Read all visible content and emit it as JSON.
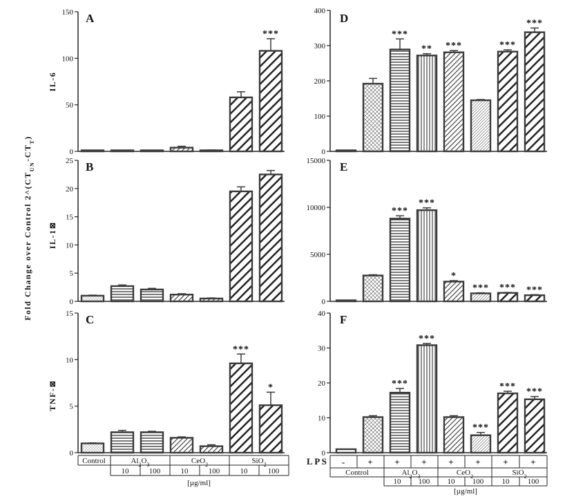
{
  "figure": {
    "y_axis_title": "Fold Change over Control 2^(CT",
    "y_axis_sub1": "UN",
    "y_axis_mid": "-CT",
    "y_axis_sub2": "T",
    "y_axis_close": ")",
    "units": "[µg/ml]",
    "lps_label": "L P S"
  },
  "left_table": {
    "control": "Control",
    "groups": [
      {
        "base": "Al",
        "s1": "2",
        "mid": "O",
        "s2": "3",
        "concs": [
          "10",
          "100"
        ]
      },
      {
        "base": "CeO",
        "s1": "2",
        "mid": "",
        "s2": "",
        "concs": [
          "10",
          "100"
        ]
      },
      {
        "base": "SiO",
        "s1": "2",
        "mid": "",
        "s2": "",
        "concs": [
          "10",
          "100"
        ]
      }
    ]
  },
  "right_table": {
    "control": "Control",
    "lps_marks": [
      "-",
      "+",
      "+",
      "+",
      "+",
      "+",
      "+",
      "+"
    ],
    "groups": [
      {
        "base": "Al",
        "s1": "2",
        "mid": "O",
        "s2": "3",
        "concs": [
          "10",
          "100"
        ]
      },
      {
        "base": "CeO",
        "s1": "2",
        "mid": "",
        "s2": "",
        "concs": [
          "10",
          "100"
        ]
      },
      {
        "base": "SiO",
        "s1": "2",
        "mid": "",
        "s2": "",
        "concs": [
          "10",
          "100"
        ]
      }
    ]
  },
  "colors": {
    "bar_stroke": "#3a3a3a",
    "axis": "#222222"
  },
  "chart_data": [
    {
      "panel": "A",
      "type": "bar",
      "ylabel": "IL-6",
      "ylim": [
        0,
        150
      ],
      "yticks": [
        "0",
        "50",
        "100",
        "150"
      ],
      "tick_values": [
        0,
        50,
        100,
        150
      ],
      "values": [
        1,
        1,
        1,
        4,
        1,
        58,
        108
      ],
      "errors": [
        0,
        0,
        0,
        1.5,
        0.5,
        6,
        13
      ],
      "significance": [
        "",
        "",
        "",
        "",
        "",
        "",
        "***"
      ],
      "patterns": [
        "dots",
        "hstripes",
        "hstripes",
        "diag",
        "diag",
        "thick",
        "thick"
      ]
    },
    {
      "panel": "B",
      "type": "bar",
      "ylabel": "IL-1⊠",
      "ylim": [
        0,
        25
      ],
      "yticks": [
        "0",
        "5",
        "10",
        "15",
        "20",
        "25"
      ],
      "tick_values": [
        0,
        5,
        10,
        15,
        20,
        25
      ],
      "values": [
        1,
        2.7,
        2.1,
        1.2,
        0.5,
        19.5,
        22.5
      ],
      "errors": [
        0.1,
        0.2,
        0.2,
        0.15,
        0.1,
        0.8,
        0.7
      ],
      "significance": [
        "",
        "",
        "",
        "",
        "",
        "",
        ""
      ],
      "patterns": [
        "dots",
        "hstripes",
        "hstripes",
        "diag",
        "diag",
        "thick",
        "thick"
      ]
    },
    {
      "panel": "C",
      "type": "bar",
      "ylabel": "TNF-⊠",
      "ylim": [
        0,
        15
      ],
      "yticks": [
        "0",
        "5",
        "10",
        "15"
      ],
      "tick_values": [
        0,
        5,
        10,
        15
      ],
      "values": [
        1,
        2.2,
        2.2,
        1.6,
        0.7,
        9.6,
        5.1
      ],
      "errors": [
        0.05,
        0.2,
        0.1,
        0.1,
        0.15,
        1.0,
        1.4
      ],
      "significance": [
        "",
        "",
        "",
        "",
        "",
        "***",
        "*"
      ],
      "patterns": [
        "dots",
        "hstripes",
        "hstripes",
        "diag",
        "diag",
        "thick",
        "thick"
      ]
    },
    {
      "panel": "D",
      "type": "bar",
      "ylabel": "",
      "ylim": [
        0,
        400
      ],
      "yticks": [
        "0",
        "100",
        "200",
        "300",
        "400"
      ],
      "tick_values": [
        0,
        100,
        200,
        300,
        400
      ],
      "values": [
        1,
        192,
        289,
        272,
        281,
        145,
        283,
        338
      ],
      "errors": [
        0,
        15,
        30,
        5,
        5,
        2,
        5,
        12
      ],
      "significance": [
        "",
        "",
        "***",
        "**",
        "***",
        "",
        "***",
        "***"
      ],
      "patterns": [
        "none",
        "cross",
        "hstripes",
        "vstripes",
        "diag",
        "fine",
        "thick",
        "thick"
      ]
    },
    {
      "panel": "E",
      "type": "bar",
      "ylabel": "",
      "ylim": [
        0,
        15000
      ],
      "yticks": [
        "0",
        "5000",
        "10000",
        "15000"
      ],
      "tick_values": [
        0,
        5000,
        10000,
        15000
      ],
      "values": [
        10,
        2750,
        8800,
        9700,
        2100,
        850,
        900,
        650
      ],
      "errors": [
        0,
        80,
        300,
        250,
        100,
        60,
        50,
        60
      ],
      "significance": [
        "",
        "",
        "***",
        "***",
        "*",
        "***",
        "***",
        "***"
      ],
      "patterns": [
        "none",
        "cross",
        "hstripes",
        "vstripes",
        "diag",
        "fine",
        "thick",
        "thick"
      ]
    },
    {
      "panel": "F",
      "type": "bar",
      "ylabel": "",
      "ylim": [
        0,
        40
      ],
      "yticks": [
        "0",
        "10",
        "20",
        "30",
        "40"
      ],
      "tick_values": [
        0,
        10,
        20,
        30,
        40
      ],
      "values": [
        1,
        10.2,
        17.2,
        30.8,
        10.2,
        5,
        17,
        15.3
      ],
      "errors": [
        0,
        0.4,
        1.2,
        0.5,
        0.4,
        0.8,
        0.6,
        0.8
      ],
      "significance": [
        "",
        "",
        "***",
        "***",
        "",
        "***",
        "***",
        "***"
      ],
      "patterns": [
        "none",
        "cross",
        "hstripes",
        "vstripes",
        "diag",
        "fine",
        "thick",
        "thick"
      ]
    }
  ]
}
